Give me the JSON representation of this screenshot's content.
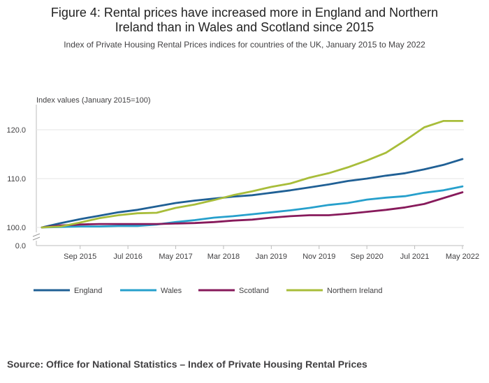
{
  "title_line1": "Figure 4: Rental prices have increased more in England and Northern",
  "title_line2": "Ireland than in Wales and Scotland since 2015",
  "subtitle": "Index of Private Housing Rental Prices indices for countries of the UK, January 2015 to May 2022",
  "source": "Source: Office for National Statistics – Index of Private Housing Rental Prices",
  "colors": {
    "England": "#206095",
    "Wales": "#27a0cc",
    "Scotland": "#871a5b",
    "Northern Ireland": "#a8bd3a"
  },
  "chart_data": {
    "type": "line",
    "ylabel": "Index values (January 2015=100)",
    "y_ticks": [
      "120.0",
      "110.0",
      "100.0",
      "0.0"
    ],
    "y_tick_values": [
      120,
      110,
      100,
      0
    ],
    "ylim_upper": [
      100,
      122
    ],
    "axis_break": true,
    "x_ticks": [
      "Sep 2015",
      "Jul 2016",
      "May 2017",
      "Mar 2018",
      "Jan 2019",
      "Nov 2019",
      "Sep 2020",
      "Jul 2021",
      "May 2022"
    ],
    "x_start": "Jan 2015",
    "x_end": "May 2022",
    "grid": true,
    "legend_position": "bottom",
    "x_months": [
      0,
      4,
      8,
      12,
      16,
      20,
      24,
      28,
      32,
      36,
      40,
      44,
      48,
      52,
      56,
      60,
      64,
      68,
      72,
      76,
      80,
      84,
      88
    ],
    "series": [
      {
        "name": "England",
        "values": [
          100.0,
          100.9,
          101.7,
          102.4,
          103.1,
          103.6,
          104.3,
          105.0,
          105.5,
          105.9,
          106.3,
          106.6,
          107.1,
          107.6,
          108.2,
          108.8,
          109.5,
          110.0,
          110.6,
          111.1,
          111.9,
          112.8,
          114.0
        ]
      },
      {
        "name": "Wales",
        "values": [
          100.0,
          100.1,
          100.2,
          100.2,
          100.3,
          100.3,
          100.6,
          101.1,
          101.5,
          102.0,
          102.3,
          102.7,
          103.1,
          103.5,
          104.0,
          104.6,
          105.0,
          105.7,
          106.1,
          106.4,
          107.1,
          107.6,
          108.4
        ]
      },
      {
        "name": "Scotland",
        "values": [
          100.0,
          100.4,
          100.6,
          100.7,
          100.7,
          100.7,
          100.7,
          100.8,
          100.9,
          101.1,
          101.4,
          101.6,
          102.0,
          102.3,
          102.5,
          102.5,
          102.8,
          103.2,
          103.6,
          104.1,
          104.8,
          106.0,
          107.2
        ]
      },
      {
        "name": "Northern Ireland",
        "values": [
          100.0,
          100.2,
          101.0,
          101.9,
          102.5,
          102.9,
          103.0,
          104.0,
          104.7,
          105.6,
          106.6,
          107.4,
          108.3,
          109.0,
          110.2,
          111.1,
          112.3,
          113.7,
          115.3,
          117.8,
          120.5,
          121.8,
          121.8
        ]
      }
    ]
  }
}
